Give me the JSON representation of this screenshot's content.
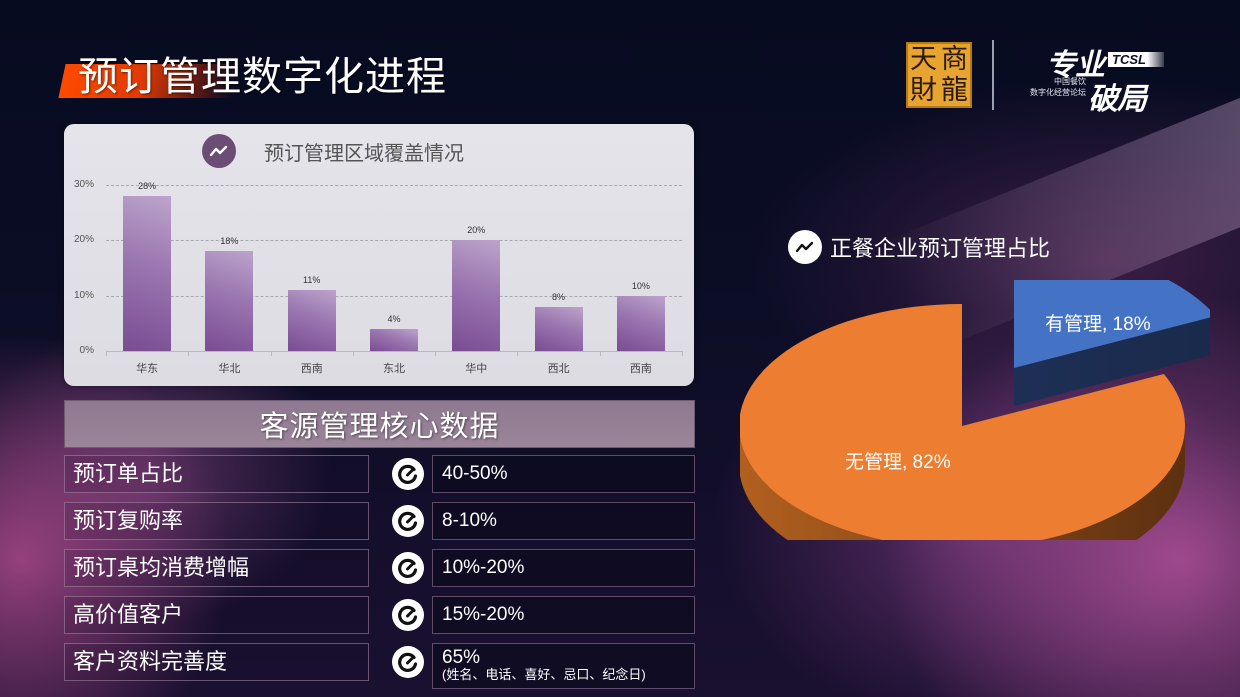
{
  "page": {
    "title": "预订管理数字化进程"
  },
  "logo": {
    "seal_chars": [
      "天",
      "商",
      "財",
      "龍"
    ],
    "main_line1": "专业",
    "tag": "TCSL",
    "sub_line1": "中国餐饮",
    "sub_line2": "数字化经营论坛",
    "main_line2": "破局"
  },
  "bar_panel": {
    "title": "预订管理区域覆盖情况",
    "icon": "trend-line-icon"
  },
  "core": {
    "heading": "客源管理核心数据",
    "icon": "gauge-check-icon",
    "rows": [
      {
        "label": "预订单占比",
        "value": "40-50%",
        "sub": ""
      },
      {
        "label": "预订复购率",
        "value": "8-10%",
        "sub": ""
      },
      {
        "label": "预订桌均消费增幅",
        "value": "10%-20%",
        "sub": ""
      },
      {
        "label": "高价值客户",
        "value": "15%-20%",
        "sub": ""
      },
      {
        "label": "客户资料完善度",
        "value": "65%",
        "sub": "(姓名、电话、喜好、忌口、纪念日)"
      }
    ]
  },
  "pie_panel": {
    "title": "正餐企业预订管理占比",
    "icon": "trend-line-icon"
  },
  "chart_data": [
    {
      "type": "bar",
      "title": "预订管理区域覆盖情况",
      "categories": [
        "华东",
        "华北",
        "西南",
        "东北",
        "华中",
        "西北",
        "西南"
      ],
      "values": [
        28,
        18,
        11,
        4,
        20,
        8,
        10
      ],
      "value_labels": [
        "28%",
        "18%",
        "11%",
        "4%",
        "20%",
        "8%",
        "10%"
      ],
      "xlabel": "",
      "ylabel": "",
      "yticks": [
        "0%",
        "10%",
        "20%",
        "30%"
      ],
      "ylim": [
        0,
        30
      ],
      "grid": true,
      "legend": "none",
      "color": "#8a62a3"
    },
    {
      "type": "pie",
      "title": "正餐企业预订管理占比",
      "categories": [
        "有管理",
        "无管理"
      ],
      "values": [
        18,
        82
      ],
      "labels": [
        "有管理, 18%",
        "无管理, 82%"
      ],
      "colors": [
        "#4472c4",
        "#ed7d31"
      ],
      "style": "3d-exploded"
    }
  ]
}
